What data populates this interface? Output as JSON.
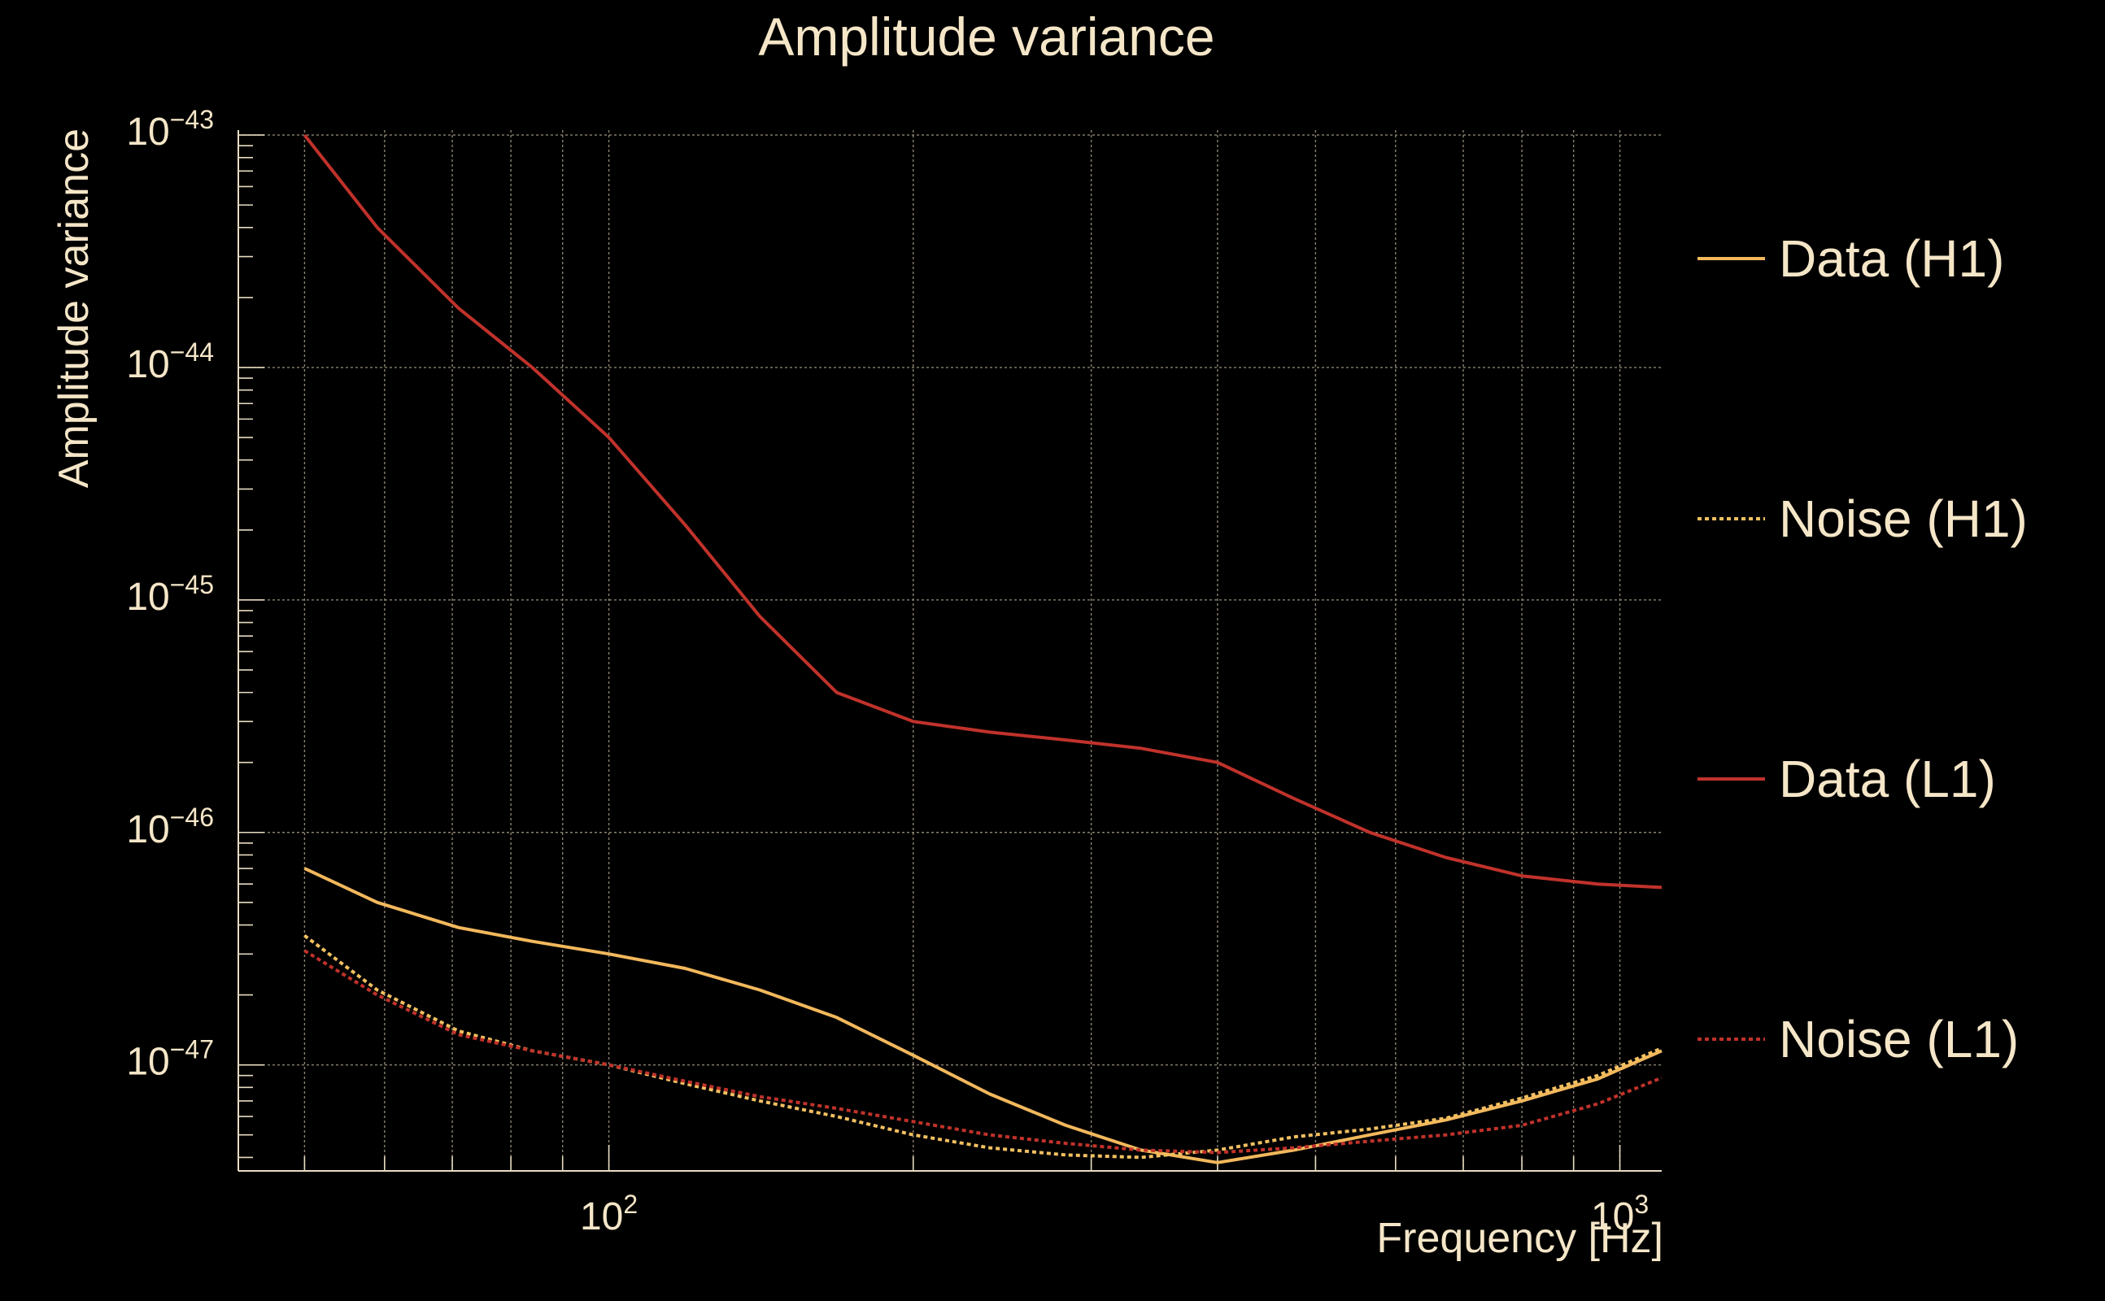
{
  "chart_data": {
    "type": "line",
    "title": "Amplitude variance",
    "xlabel": "Frequency [Hz]",
    "ylabel": "Amplitude variance",
    "xscale": "log",
    "yscale": "log",
    "xlim": [
      43,
      1100
    ],
    "ylim": [
      3.5e-48,
      1.05e-43
    ],
    "grid": true,
    "legend_position": "right",
    "x_tick_labels": [
      {
        "base": "10",
        "exp": "2",
        "value": 100
      },
      {
        "base": "10",
        "exp": "3",
        "value": 1000
      }
    ],
    "y_tick_labels": [
      {
        "base": "10",
        "exp": "−43",
        "value": 1e-43
      },
      {
        "base": "10",
        "exp": "−44",
        "value": 1e-44
      },
      {
        "base": "10",
        "exp": "−45",
        "value": 1e-45
      },
      {
        "base": "10",
        "exp": "−46",
        "value": 1e-46
      },
      {
        "base": "10",
        "exp": "−47",
        "value": 1e-47
      }
    ],
    "series": [
      {
        "name": "Data (H1)",
        "color": "#f2b85c",
        "dash": "solid",
        "x": [
          50,
          59,
          71,
          84,
          100,
          119,
          141,
          168,
          200,
          238,
          283,
          336,
          400,
          476,
          566,
          673,
          800,
          951,
          1100
        ],
        "y": [
          7e-47,
          5e-47,
          3.9e-47,
          3.4e-47,
          3e-47,
          2.6e-47,
          2.1e-47,
          1.6e-47,
          1.1e-47,
          7.5e-48,
          5.5e-48,
          4.3e-48,
          3.8e-48,
          4.3e-48,
          5e-48,
          5.8e-48,
          7e-48,
          8.7e-48,
          1.15e-47
        ]
      },
      {
        "name": "Noise (H1)",
        "color": "#f2c060",
        "dash": "dotted",
        "x": [
          50,
          59,
          71,
          84,
          100,
          119,
          141,
          168,
          200,
          238,
          283,
          336,
          400,
          476,
          566,
          673,
          800,
          951,
          1100
        ],
        "y": [
          3.6e-47,
          2.1e-47,
          1.4e-47,
          1.15e-47,
          1e-47,
          8.3e-48,
          7e-48,
          6e-48,
          5e-48,
          4.4e-48,
          4.1e-48,
          4e-48,
          4.3e-48,
          4.9e-48,
          5.3e-48,
          5.9e-48,
          7.2e-48,
          9e-48,
          1.18e-47
        ]
      },
      {
        "name": "Data (L1)",
        "color": "#c0322b",
        "dash": "solid",
        "x": [
          50,
          59,
          71,
          84,
          100,
          119,
          141,
          168,
          200,
          238,
          283,
          336,
          400,
          476,
          566,
          673,
          800,
          951,
          1100
        ],
        "y": [
          1e-43,
          4e-44,
          1.8e-44,
          1e-44,
          5e-45,
          2.1e-45,
          8.5e-46,
          4e-46,
          3e-46,
          2.7e-46,
          2.5e-46,
          2.3e-46,
          2e-46,
          1.4e-46,
          1e-46,
          7.8e-47,
          6.5e-47,
          6e-47,
          5.8e-47
        ]
      },
      {
        "name": "Noise (L1)",
        "color": "#c0322b",
        "dash": "dotted",
        "x": [
          50,
          59,
          71,
          84,
          100,
          119,
          141,
          168,
          200,
          238,
          283,
          336,
          400,
          476,
          566,
          673,
          800,
          951,
          1100
        ],
        "y": [
          3.1e-47,
          2e-47,
          1.35e-47,
          1.15e-47,
          1e-47,
          8.5e-48,
          7.3e-48,
          6.5e-48,
          5.7e-48,
          5e-48,
          4.6e-48,
          4.3e-48,
          4.2e-48,
          4.4e-48,
          4.7e-48,
          5e-48,
          5.5e-48,
          6.8e-48,
          8.8e-48
        ]
      }
    ]
  },
  "colors": {
    "background": "#000000",
    "text": "#f5e6c8",
    "axis": "#e8dcc2",
    "grid": "#8a8270"
  }
}
